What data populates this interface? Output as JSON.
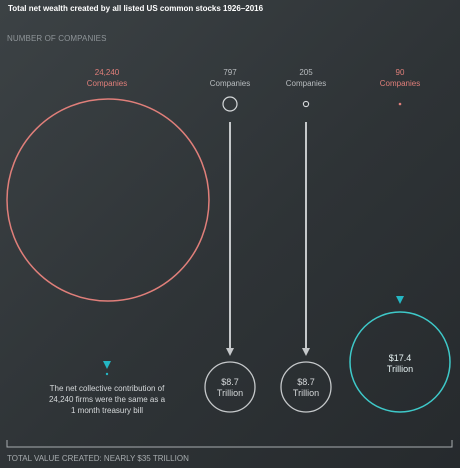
{
  "title": "Total net wealth created by all listed US common stocks 1926–2016",
  "subtitle": "NUMBER OF COMPANIES",
  "footer": "TOTAL VALUE CREATED: NEARLY $35 TRILLION",
  "groups": [
    {
      "count": "24,240",
      "unit": "Companies",
      "color": "#e07f7a",
      "arrow_color": "#24b7c4"
    },
    {
      "count": "797",
      "unit": "Companies",
      "color": "#c5c8ca",
      "arrow_color": "#c5c8ca",
      "value": "$8.7",
      "value_unit": "Trillion"
    },
    {
      "count": "205",
      "unit": "Companies",
      "color": "#c5c8ca",
      "arrow_color": "#c5c8ca",
      "value": "$8.7",
      "value_unit": "Trillion"
    },
    {
      "count": "90",
      "unit": "Companies",
      "color": "#e07f7a",
      "arrow_color": "#24b7c4",
      "value": "$17.4",
      "value_unit": "Trillion",
      "value_color": "#3ec9c9"
    }
  ],
  "note": [
    "The net collective contribution of",
    "24,240 firms were the same as a",
    "1 month treasury bill"
  ]
}
